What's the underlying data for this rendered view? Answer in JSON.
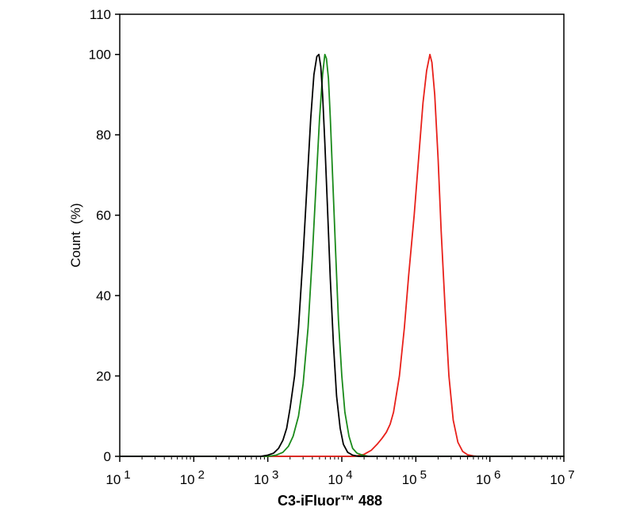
{
  "chart_data": {
    "type": "line",
    "title": "",
    "xlabel": "C3-iFluor™ 488",
    "ylabel": "Count  (%)",
    "xscale": "log",
    "xlim": [
      10,
      10000000
    ],
    "ylim": [
      0,
      110
    ],
    "grid": false,
    "legend": "none",
    "x_ticks": [
      {
        "base": "10",
        "exp": "1",
        "value": 10
      },
      {
        "base": "10",
        "exp": "2",
        "value": 100
      },
      {
        "base": "10",
        "exp": "3",
        "value": 1000
      },
      {
        "base": "10",
        "exp": "4",
        "value": 10000
      },
      {
        "base": "10",
        "exp": "5",
        "value": 100000
      },
      {
        "base": "10",
        "exp": "6",
        "value": 1000000
      },
      {
        "base": "10",
        "exp": "7",
        "value": 10000000
      }
    ],
    "y_ticks": [
      "0",
      "20",
      "40",
      "60",
      "80",
      "100",
      "110"
    ],
    "series": [
      {
        "color": "#000000",
        "x": [
          10,
          800,
          1000,
          1200,
          1400,
          1600,
          1800,
          2000,
          2300,
          2600,
          3000,
          3400,
          3800,
          4200,
          4600,
          4900,
          5200,
          5500,
          5900,
          6400,
          7000,
          7700,
          8500,
          9500,
          10500,
          12000,
          14000,
          17000,
          10000000
        ],
        "y": [
          0,
          0,
          0.3,
          0.8,
          2,
          4,
          7,
          12,
          20,
          32,
          50,
          68,
          84,
          95,
          99.5,
          100,
          97,
          90,
          78,
          62,
          44,
          28,
          15,
          7,
          3,
          1,
          0.3,
          0,
          0
        ]
      },
      {
        "color": "#1a8a1a",
        "x": [
          10,
          1000,
          1300,
          1600,
          1900,
          2200,
          2600,
          3000,
          3500,
          4000,
          4500,
          5000,
          5500,
          5900,
          6200,
          6600,
          7000,
          7500,
          8200,
          9000,
          10000,
          11000,
          12500,
          14000,
          16000,
          19000,
          23000,
          10000000
        ],
        "y": [
          0,
          0,
          0.3,
          1,
          2.5,
          5,
          10,
          18,
          32,
          50,
          68,
          84,
          95,
          100,
          99,
          94,
          84,
          70,
          52,
          34,
          20,
          11,
          5,
          2,
          0.8,
          0.3,
          0,
          0
        ]
      },
      {
        "color": "#e8201a",
        "x": [
          10,
          15000,
          20000,
          25000,
          30000,
          35000,
          40000,
          45000,
          50000,
          60000,
          70000,
          80000,
          95000,
          110000,
          125000,
          140000,
          155000,
          165000,
          180000,
          200000,
          220000,
          250000,
          280000,
          320000,
          370000,
          430000,
          500000,
          600000,
          700000,
          10000000
        ],
        "y": [
          0,
          0,
          0.5,
          1.5,
          3,
          4.5,
          6,
          8,
          11,
          20,
          32,
          45,
          60,
          75,
          88,
          96,
          100,
          98,
          90,
          74,
          56,
          36,
          20,
          9,
          3.5,
          1.2,
          0.4,
          0.1,
          0,
          0
        ]
      }
    ]
  }
}
